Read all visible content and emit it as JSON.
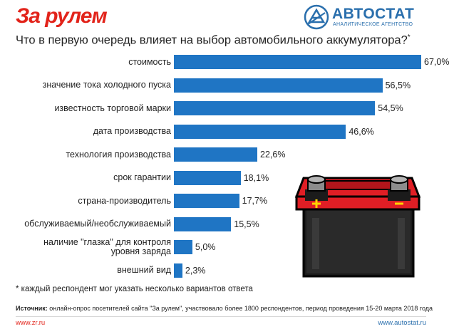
{
  "header": {
    "brand_left": "За рулем",
    "brand_right": "АВТОСТАТ",
    "brand_right_sub": "АНАЛИТИЧЕСКОЕ АГЕНТСТВО"
  },
  "title": "Что в первую очередь влияет на выбор автомобильного аккумулятора?",
  "title_mark": "*",
  "chart_data": {
    "type": "bar",
    "orientation": "horizontal",
    "categories": [
      "стоимость",
      "значение тока холодного пуска",
      "известность торговой марки",
      "дата производства",
      "технология производства",
      "срок гарантии",
      "страна-производитель",
      "обслуживаемый/необслуживаемый",
      "наличие \"глазка\" для контроля уровня заряда",
      "внешний вид"
    ],
    "category_lines": [
      [
        "стоимость"
      ],
      [
        "значение тока холодного пуска"
      ],
      [
        "известность торговой марки"
      ],
      [
        "дата производства"
      ],
      [
        "технология производства"
      ],
      [
        "срок гарантии"
      ],
      [
        "страна-производитель"
      ],
      [
        "обслуживаемый/необслуживаемый"
      ],
      [
        "наличие \"глазка\" для контроля",
        "уровня заряда"
      ],
      [
        "внешний вид"
      ]
    ],
    "values": [
      67.0,
      56.5,
      54.5,
      46.6,
      22.6,
      18.1,
      17.7,
      15.5,
      5.0,
      2.3
    ],
    "value_labels": [
      "67,0%",
      "56,5%",
      "54,5%",
      "46,6%",
      "22,6%",
      "18,1%",
      "17,7%",
      "15,5%",
      "5,0%",
      "2,3%"
    ],
    "xlim": [
      0,
      67
    ],
    "unit": "%",
    "grid": false,
    "bar_color": "#1f75c4"
  },
  "footnote": "* каждый респондент мог указать несколько вариантов ответа",
  "source_label": "Источник:",
  "source_text": " онлайн-опрос посетителей сайта \"За рулем\", участвовало более 1800 респондентов, период проведения 15-20 марта 2018 года",
  "footer": {
    "left_url": "www.zr.ru",
    "right_url": "www.autostat.ru"
  },
  "colors": {
    "zr_red": "#e2231a",
    "avtostat_blue": "#2a6fad",
    "battery_red": "#e01e25"
  }
}
